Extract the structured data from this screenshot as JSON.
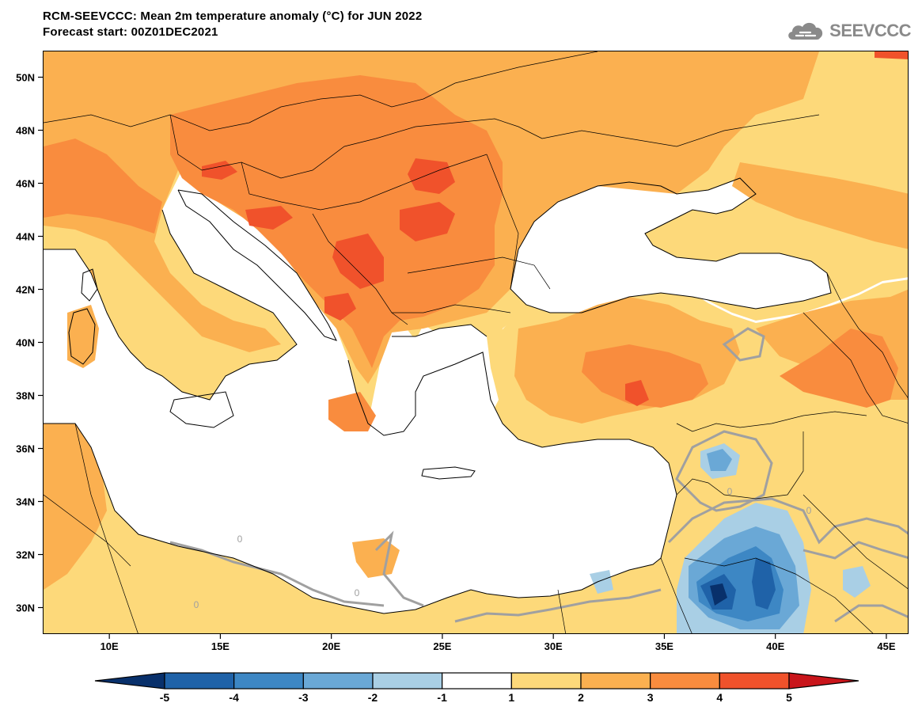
{
  "header": {
    "title": "RCM-SEEVCCC: Mean 2m temperature anomaly (°C) for JUN 2022",
    "subtitle": "Forecast start: 00Z01DEC2021",
    "logo_text": "SEEVCCC",
    "logo_icon": "cloud-icon",
    "logo_color": "#8a8a8a"
  },
  "map": {
    "lon_range": [
      7,
      46
    ],
    "lat_range": [
      29,
      51
    ],
    "lat_ticks": [
      {
        "value": 50,
        "label": "50N"
      },
      {
        "value": 48,
        "label": "48N"
      },
      {
        "value": 46,
        "label": "46N"
      },
      {
        "value": 44,
        "label": "44N"
      },
      {
        "value": 42,
        "label": "42N"
      },
      {
        "value": 40,
        "label": "40N"
      },
      {
        "value": 38,
        "label": "38N"
      },
      {
        "value": 36,
        "label": "36N"
      },
      {
        "value": 34,
        "label": "34N"
      },
      {
        "value": 32,
        "label": "32N"
      },
      {
        "value": 30,
        "label": "30N"
      }
    ],
    "lon_ticks": [
      {
        "value": 10,
        "label": "10E"
      },
      {
        "value": 15,
        "label": "15E"
      },
      {
        "value": 20,
        "label": "20E"
      },
      {
        "value": 25,
        "label": "25E"
      },
      {
        "value": 30,
        "label": "30E"
      },
      {
        "value": 35,
        "label": "35E"
      },
      {
        "value": 40,
        "label": "40E"
      },
      {
        "value": 45,
        "label": "45E"
      }
    ],
    "zero_contour_label": "0"
  },
  "colorbar": {
    "levels": [
      "-5",
      "-4",
      "-3",
      "-2",
      "-1",
      "1",
      "2",
      "3",
      "4",
      "5"
    ],
    "colors": [
      "#08306b",
      "#1f62a8",
      "#3d87c4",
      "#6aa8d6",
      "#a9cfe5",
      "#ffffff",
      "#fdd97a",
      "#fbb050",
      "#f98c3e",
      "#f0522b",
      "#c9151b"
    ]
  },
  "fill_colors": {
    "c12": "#fdd97a",
    "c23": "#fbb050",
    "c34": "#f98c3e",
    "c45": "#f0522b",
    "cb1": "#a9cfe5",
    "cb2": "#6aa8d6",
    "cb3": "#3d87c4",
    "cb4": "#1f62a8",
    "cb5": "#08306b",
    "zero_contour": "#a0a0a0"
  }
}
